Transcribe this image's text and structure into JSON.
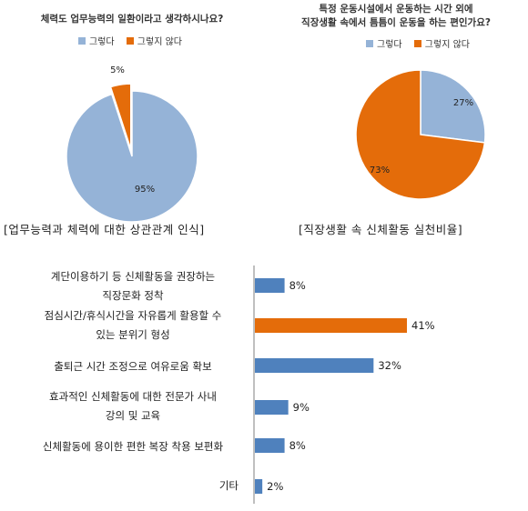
{
  "colors": {
    "blue": "#95b3d7",
    "orange": "#e46c0a",
    "bar_blue": "#4f81bd",
    "bar_orange": "#e46c0a",
    "axis": "#7f7f7f"
  },
  "chart_data": [
    {
      "type": "pie",
      "title": "체력도 업무능력의 일환이라고 생각하시나요?",
      "legend": [
        "그렇다",
        "그렇지 않다"
      ],
      "labels": [
        "그렇다",
        "그렇지 않다"
      ],
      "values": [
        95,
        5
      ],
      "data_labels": [
        "95%",
        "5%"
      ],
      "caption": "[업무능력과 체력에 대한 상관관계 인식]"
    },
    {
      "type": "pie",
      "title": [
        "특정 운동시설에서 운동하는 시간 외에",
        "직장생활 속에서 틈틈이 운동을 하는 편인가요?"
      ],
      "legend": [
        "그렇다",
        "그렇지 않다"
      ],
      "labels": [
        "그렇다",
        "그렇지 않다"
      ],
      "values": [
        27,
        73
      ],
      "data_labels": [
        "27%",
        "73%"
      ],
      "caption": "[직장생활 속 신체활동 실천비율]"
    },
    {
      "type": "bar",
      "orientation": "horizontal",
      "categories": [
        [
          "계단이용하기 등 신체활동을 권장하는",
          "직장문화 정착"
        ],
        [
          "점심시간/휴식시간을 자유롭게 활용할 수",
          "있는 분위기 형성"
        ],
        [
          "출퇴근 시간 조정으로 여유로움 확보"
        ],
        [
          "효과적인 신체활동에 대한 전문가 사내",
          "강의 및 교육"
        ],
        [
          "신체활동에 용이한 편한 복장 착용 보편화"
        ],
        [
          "기타"
        ]
      ],
      "values": [
        8,
        41,
        32,
        9,
        8,
        2
      ],
      "data_labels": [
        "8%",
        "41%",
        "32%",
        "9%",
        "8%",
        "2%"
      ],
      "highlight_index": 1,
      "xlim": [
        0,
        45
      ]
    }
  ]
}
